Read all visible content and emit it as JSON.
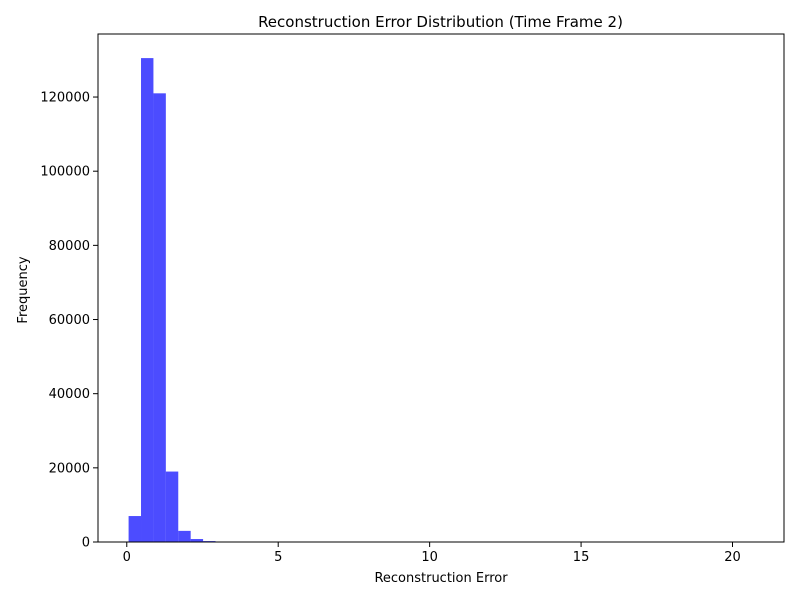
{
  "chart_data": {
    "type": "histogram",
    "title": "Reconstruction Error Distribution (Time Frame 2)",
    "xlabel": "Reconstruction Error",
    "ylabel": "Frequency",
    "xlim": [
      -0.95,
      21.7
    ],
    "ylim": [
      0,
      137000
    ],
    "xticks": [
      0,
      5,
      10,
      15,
      20
    ],
    "yticks": [
      0,
      20000,
      40000,
      60000,
      80000,
      100000,
      120000
    ],
    "bar_color": "#0000ff",
    "bar_opacity": 0.7,
    "bins": [
      {
        "start": 0.06,
        "end": 0.47,
        "count": 7000
      },
      {
        "start": 0.47,
        "end": 0.88,
        "count": 130500
      },
      {
        "start": 0.88,
        "end": 1.29,
        "count": 121000
      },
      {
        "start": 1.29,
        "end": 1.7,
        "count": 19000
      },
      {
        "start": 1.7,
        "end": 2.11,
        "count": 3000
      },
      {
        "start": 2.11,
        "end": 2.52,
        "count": 800
      },
      {
        "start": 2.52,
        "end": 2.93,
        "count": 250
      },
      {
        "start": 2.93,
        "end": 3.34,
        "count": 80
      },
      {
        "start": 3.34,
        "end": 3.75,
        "count": 30
      },
      {
        "start": 3.75,
        "end": 4.16,
        "count": 10
      }
    ],
    "grid": false,
    "legend": "none"
  }
}
